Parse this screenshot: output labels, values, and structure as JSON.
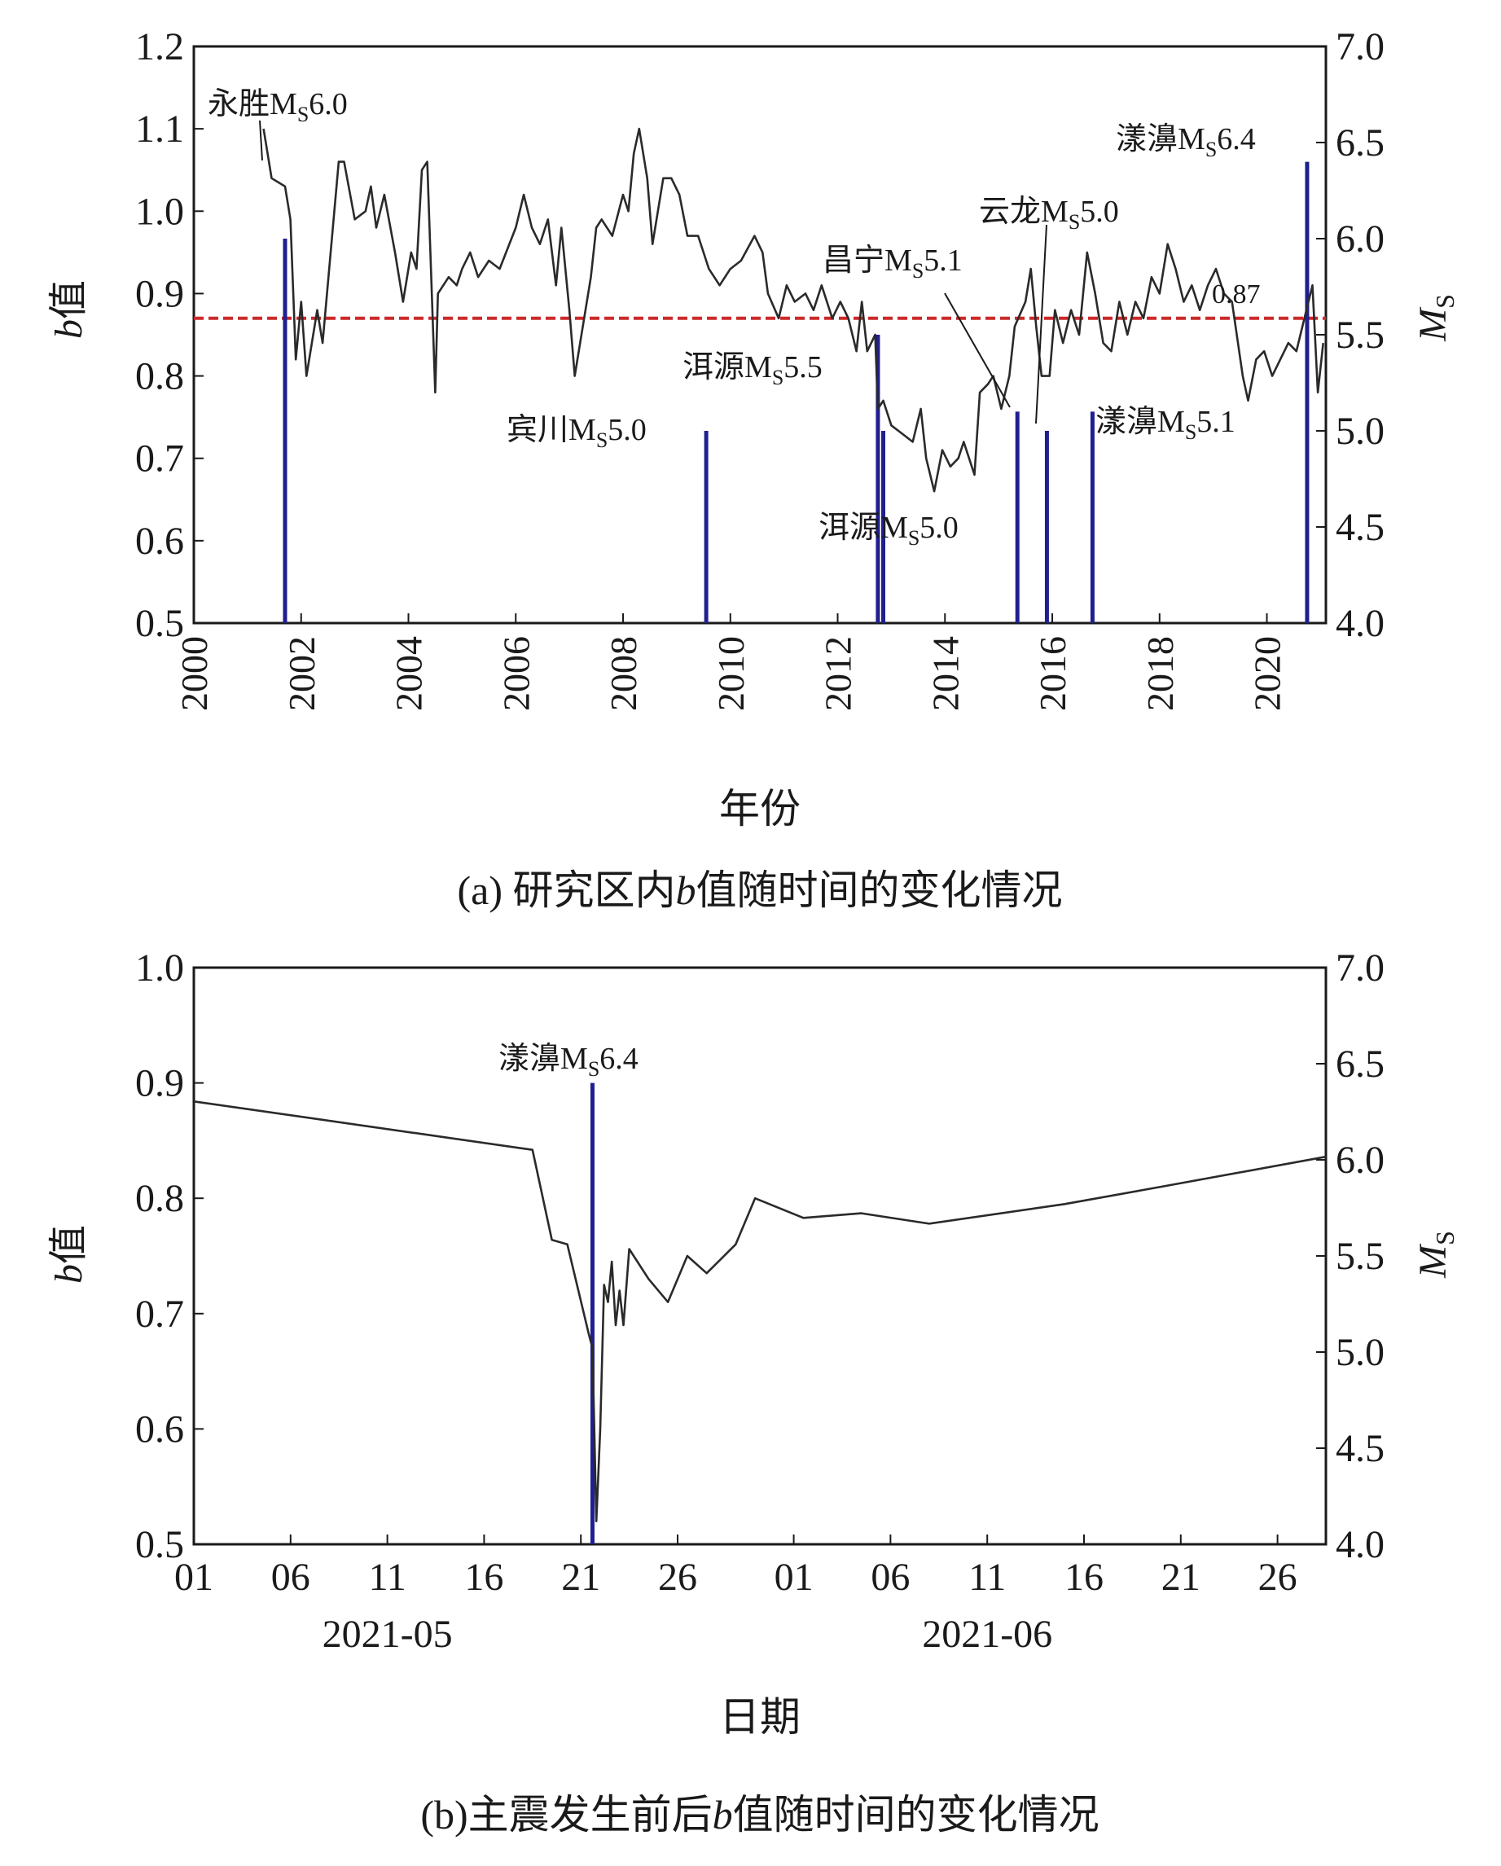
{
  "chart_data": [
    {
      "type": "line",
      "panel": "a",
      "caption_prefix": "(a) 研究区内",
      "caption_b": "b",
      "caption_suffix": "值随时间的变化情况",
      "ylabel_b": "b",
      "ylabel_rest": "值",
      "xlabel": "年份",
      "y2label_main": "M",
      "y2label_sub": "S",
      "ylim": [
        0.5,
        1.2
      ],
      "y2lim": [
        4.0,
        7.0
      ],
      "xlim": [
        2000.0,
        2021.1
      ],
      "yticks": [
        "0.5",
        "0.6",
        "0.7",
        "0.8",
        "0.9",
        "1.0",
        "1.1",
        "1.2"
      ],
      "y2ticks": [
        "4.0",
        "4.5",
        "5.0",
        "5.5",
        "6.0",
        "6.5",
        "7.0"
      ],
      "xticks": [
        "2000",
        "2002",
        "2004",
        "2006",
        "2008",
        "2010",
        "2012",
        "2014",
        "2016",
        "2018",
        "2020"
      ],
      "reference_line": {
        "value": 0.87,
        "label": "0.87",
        "color": "#cc2a2a"
      },
      "line_color": "#2a2a2a",
      "bar_color": "#1f1f8f",
      "series": [
        {
          "name": "b值",
          "points": [
            [
              2001.3,
              1.1
            ],
            [
              2001.45,
              1.04
            ],
            [
              2001.7,
              1.03
            ],
            [
              2001.8,
              0.99
            ],
            [
              2001.9,
              0.82
            ],
            [
              2002.0,
              0.89
            ],
            [
              2002.1,
              0.8
            ],
            [
              2002.3,
              0.88
            ],
            [
              2002.4,
              0.84
            ],
            [
              2002.7,
              1.06
            ],
            [
              2002.8,
              1.06
            ],
            [
              2003.0,
              0.99
            ],
            [
              2003.2,
              1.0
            ],
            [
              2003.3,
              1.03
            ],
            [
              2003.4,
              0.98
            ],
            [
              2003.55,
              1.02
            ],
            [
              2003.75,
              0.95
            ],
            [
              2003.9,
              0.89
            ],
            [
              2004.05,
              0.95
            ],
            [
              2004.15,
              0.93
            ],
            [
              2004.25,
              1.05
            ],
            [
              2004.35,
              1.06
            ],
            [
              2004.5,
              0.78
            ],
            [
              2004.55,
              0.9
            ],
            [
              2004.75,
              0.92
            ],
            [
              2004.9,
              0.91
            ],
            [
              2005.0,
              0.93
            ],
            [
              2005.15,
              0.95
            ],
            [
              2005.3,
              0.92
            ],
            [
              2005.5,
              0.94
            ],
            [
              2005.7,
              0.93
            ],
            [
              2006.0,
              0.98
            ],
            [
              2006.15,
              1.02
            ],
            [
              2006.3,
              0.98
            ],
            [
              2006.45,
              0.96
            ],
            [
              2006.6,
              0.99
            ],
            [
              2006.75,
              0.91
            ],
            [
              2006.85,
              0.98
            ],
            [
              2007.0,
              0.88
            ],
            [
              2007.1,
              0.8
            ],
            [
              2007.2,
              0.84
            ],
            [
              2007.4,
              0.92
            ],
            [
              2007.5,
              0.98
            ],
            [
              2007.6,
              0.99
            ],
            [
              2007.8,
              0.97
            ],
            [
              2008.0,
              1.02
            ],
            [
              2008.1,
              1.0
            ],
            [
              2008.2,
              1.07
            ],
            [
              2008.3,
              1.1
            ],
            [
              2008.45,
              1.04
            ],
            [
              2008.55,
              0.96
            ],
            [
              2008.75,
              1.04
            ],
            [
              2008.9,
              1.04
            ],
            [
              2009.05,
              1.02
            ],
            [
              2009.2,
              0.97
            ],
            [
              2009.4,
              0.97
            ],
            [
              2009.6,
              0.93
            ],
            [
              2009.8,
              0.91
            ],
            [
              2010.0,
              0.93
            ],
            [
              2010.2,
              0.94
            ],
            [
              2010.45,
              0.97
            ],
            [
              2010.6,
              0.95
            ],
            [
              2010.7,
              0.9
            ],
            [
              2010.9,
              0.87
            ],
            [
              2011.05,
              0.91
            ],
            [
              2011.2,
              0.89
            ],
            [
              2011.4,
              0.9
            ],
            [
              2011.55,
              0.88
            ],
            [
              2011.7,
              0.91
            ],
            [
              2011.9,
              0.87
            ],
            [
              2012.05,
              0.89
            ],
            [
              2012.2,
              0.87
            ],
            [
              2012.35,
              0.83
            ],
            [
              2012.45,
              0.89
            ],
            [
              2012.55,
              0.83
            ],
            [
              2012.7,
              0.85
            ],
            [
              2012.75,
              0.76
            ],
            [
              2012.85,
              0.77
            ],
            [
              2013.0,
              0.74
            ],
            [
              2013.2,
              0.73
            ],
            [
              2013.4,
              0.72
            ],
            [
              2013.55,
              0.76
            ],
            [
              2013.65,
              0.7
            ],
            [
              2013.8,
              0.66
            ],
            [
              2013.95,
              0.71
            ],
            [
              2014.1,
              0.69
            ],
            [
              2014.25,
              0.7
            ],
            [
              2014.35,
              0.72
            ],
            [
              2014.55,
              0.68
            ],
            [
              2014.65,
              0.78
            ],
            [
              2014.8,
              0.79
            ],
            [
              2014.9,
              0.8
            ],
            [
              2015.05,
              0.76
            ],
            [
              2015.2,
              0.8
            ],
            [
              2015.3,
              0.86
            ],
            [
              2015.5,
              0.89
            ],
            [
              2015.6,
              0.93
            ],
            [
              2015.7,
              0.86
            ],
            [
              2015.8,
              0.8
            ],
            [
              2015.95,
              0.8
            ],
            [
              2016.05,
              0.88
            ],
            [
              2016.2,
              0.84
            ],
            [
              2016.35,
              0.88
            ],
            [
              2016.5,
              0.85
            ],
            [
              2016.65,
              0.95
            ],
            [
              2016.8,
              0.9
            ],
            [
              2016.95,
              0.84
            ],
            [
              2017.1,
              0.83
            ],
            [
              2017.25,
              0.89
            ],
            [
              2017.4,
              0.85
            ],
            [
              2017.55,
              0.89
            ],
            [
              2017.7,
              0.87
            ],
            [
              2017.85,
              0.92
            ],
            [
              2018.0,
              0.9
            ],
            [
              2018.15,
              0.96
            ],
            [
              2018.3,
              0.93
            ],
            [
              2018.45,
              0.89
            ],
            [
              2018.6,
              0.91
            ],
            [
              2018.75,
              0.88
            ],
            [
              2018.9,
              0.91
            ],
            [
              2019.05,
              0.93
            ],
            [
              2019.2,
              0.9
            ],
            [
              2019.35,
              0.89
            ],
            [
              2019.55,
              0.8
            ],
            [
              2019.65,
              0.77
            ],
            [
              2019.8,
              0.82
            ],
            [
              2019.95,
              0.83
            ],
            [
              2020.1,
              0.8
            ],
            [
              2020.25,
              0.82
            ],
            [
              2020.4,
              0.84
            ],
            [
              2020.55,
              0.83
            ],
            [
              2020.7,
              0.87
            ],
            [
              2020.85,
              0.91
            ],
            [
              2020.95,
              0.78
            ],
            [
              2021.05,
              0.84
            ]
          ]
        }
      ],
      "events": [
        {
          "time": 2001.7,
          "magnitude": 6.0,
          "place": "永胜",
          "mag_label": "6.0"
        },
        {
          "time": 2009.55,
          "magnitude": 5.0,
          "place": "宾川",
          "mag_label": "5.0"
        },
        {
          "time": 2012.75,
          "magnitude": 5.5,
          "place": "洱源",
          "mag_label": "5.5"
        },
        {
          "time": 2012.85,
          "magnitude": 5.0,
          "place": "洱源",
          "mag_label": "5.0"
        },
        {
          "time": 2015.35,
          "magnitude": 5.1,
          "place": "昌宁",
          "mag_label": "5.1"
        },
        {
          "time": 2015.9,
          "magnitude": 5.0,
          "place": "云龙",
          "mag_label": "5.0"
        },
        {
          "time": 2016.75,
          "magnitude": 5.1,
          "place": "漾濞",
          "mag_label": "5.1"
        },
        {
          "time": 2020.75,
          "magnitude": 6.4,
          "place": "漾濞",
          "mag_label": "6.4"
        }
      ]
    },
    {
      "type": "line",
      "panel": "b",
      "caption_prefix": "(b)主震发生前后",
      "caption_b": "b",
      "caption_suffix": "值随时间的变化情况",
      "ylabel_b": "b",
      "ylabel_rest": "值",
      "xlabel": "日期",
      "y2label_main": "M",
      "y2label_sub": "S",
      "ylim": [
        0.5,
        1.0
      ],
      "y2lim": [
        4.0,
        7.0
      ],
      "xlim": [
        0,
        58.5
      ],
      "yticks": [
        "0.5",
        "0.6",
        "0.7",
        "0.8",
        "0.9",
        "1.0"
      ],
      "y2ticks": [
        "4.0",
        "4.5",
        "5.0",
        "5.5",
        "6.0",
        "6.5",
        "7.0"
      ],
      "xtick_values": [
        0,
        5,
        10,
        15,
        20,
        25,
        31,
        36,
        41,
        46,
        51,
        56
      ],
      "xticks": [
        "01",
        "06",
        "11",
        "16",
        "21",
        "26",
        "01",
        "06",
        "11",
        "16",
        "21",
        "26"
      ],
      "month_labels": [
        {
          "day": 10,
          "label": "2021-05"
        },
        {
          "day": 41,
          "label": "2021-06"
        }
      ],
      "line_color": "#2a2a2a",
      "bar_color": "#1f1f8f",
      "series": [
        {
          "name": "b值",
          "points": [
            [
              0,
              0.884
            ],
            [
              17.5,
              0.842
            ],
            [
              18.5,
              0.764
            ],
            [
              19.3,
              0.76
            ],
            [
              20.4,
              0.683
            ],
            [
              20.6,
              0.67
            ],
            [
              20.8,
              0.52
            ],
            [
              21.0,
              0.6
            ],
            [
              21.2,
              0.725
            ],
            [
              21.4,
              0.71
            ],
            [
              21.6,
              0.745
            ],
            [
              21.8,
              0.69
            ],
            [
              22.0,
              0.72
            ],
            [
              22.2,
              0.69
            ],
            [
              22.5,
              0.756
            ],
            [
              23.5,
              0.73
            ],
            [
              24.5,
              0.71
            ],
            [
              25.5,
              0.75
            ],
            [
              26.5,
              0.735
            ],
            [
              28.0,
              0.76
            ],
            [
              29.0,
              0.8
            ],
            [
              31.5,
              0.783
            ],
            [
              34.5,
              0.787
            ],
            [
              38.0,
              0.778
            ],
            [
              45.0,
              0.795
            ],
            [
              50.0,
              0.81
            ],
            [
              58.5,
              0.836
            ]
          ]
        }
      ],
      "events": [
        {
          "time": 20.6,
          "magnitude": 6.4,
          "place": "漾濞",
          "mag_label": "6.4"
        }
      ]
    }
  ]
}
